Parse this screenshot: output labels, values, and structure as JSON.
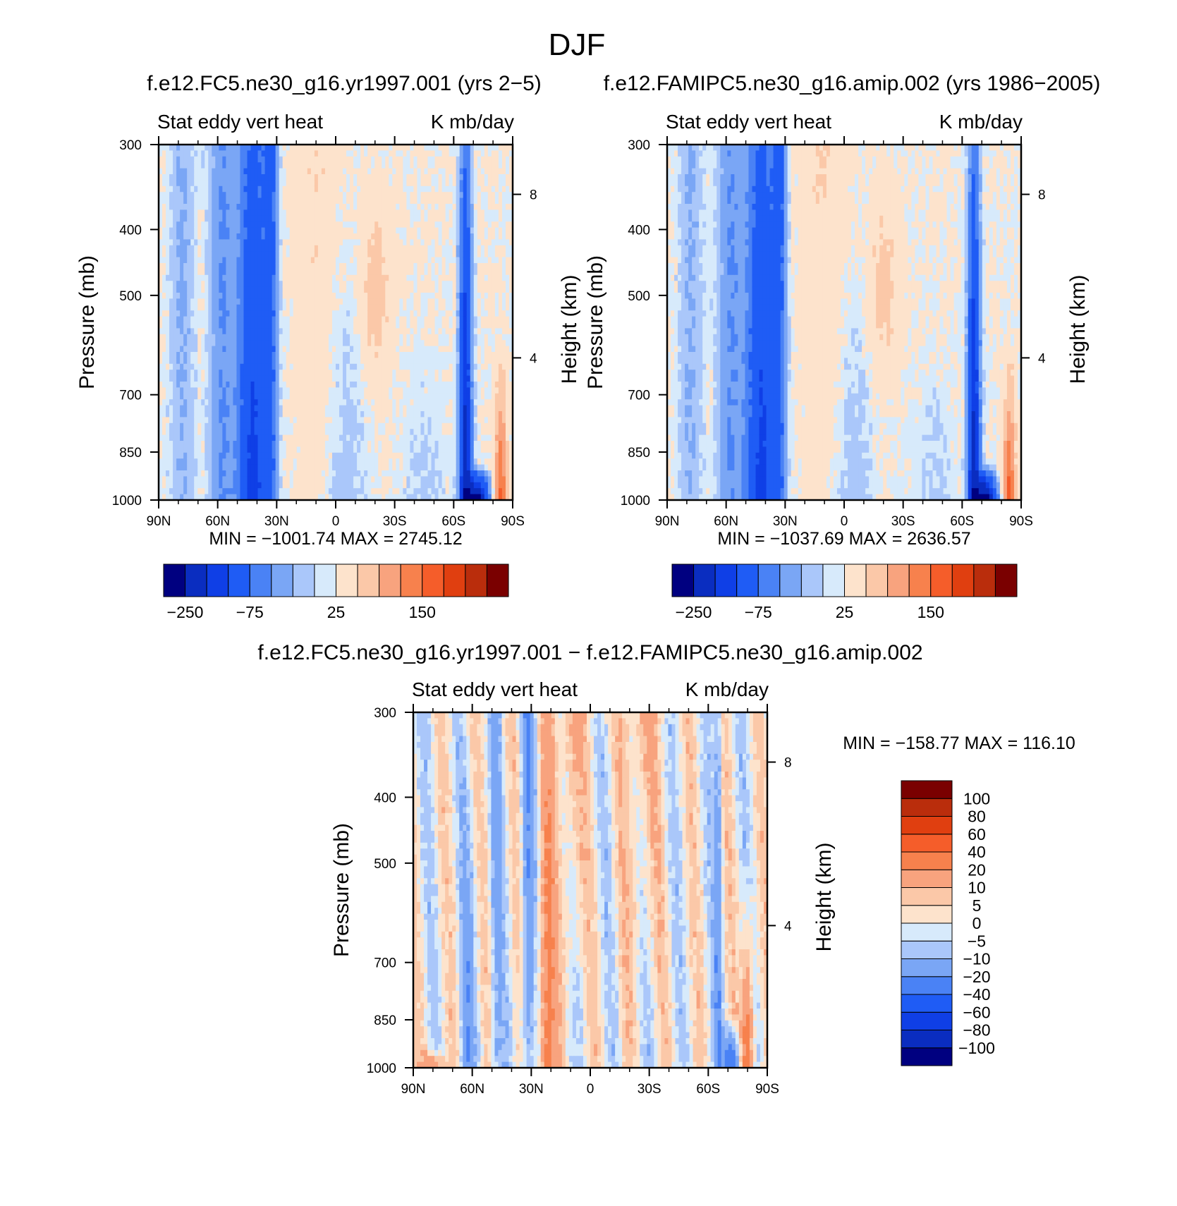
{
  "figure": {
    "title": "DJF"
  },
  "panels": [
    {
      "title": "f.e12.FC5.ne30_g16.yr1997.001 (yrs 2−5)",
      "subtitle_left": "Stat eddy vert heat",
      "subtitle_right": "K mb/day",
      "ylabel": "Pressure (mb)",
      "ylabel_right": "Height (km)",
      "minmax": "MIN = −1001.74   MAX = 2745.12",
      "colorbar": {
        "orientation": "horizontal",
        "colors": [
          "#000080",
          "#0a2dc0",
          "#0f3fe6",
          "#1f5cf5",
          "#4a82f5",
          "#7aa6f5",
          "#aac7fa",
          "#d7eafb",
          "#fde3cc",
          "#fbc8a8",
          "#f8a37e",
          "#f7814d",
          "#f55d2a",
          "#e03f10",
          "#ba2d0c",
          "#7a0000"
        ],
        "tick_labels": [
          "−250",
          "−75",
          "25",
          "150"
        ],
        "tick_boxes": [
          1,
          4,
          8,
          12
        ]
      },
      "variant": 0
    },
    {
      "title": "f.e12.FAMIPC5.ne30_g16.amip.002 (yrs 1986−2005)",
      "subtitle_left": "Stat eddy vert heat",
      "subtitle_right": "K mb/day",
      "ylabel": "Pressure (mb)",
      "ylabel_right": "Height (km)",
      "minmax": "MIN = −1037.69   MAX = 2636.57",
      "colorbar": {
        "orientation": "horizontal",
        "colors": [
          "#000080",
          "#0a2dc0",
          "#0f3fe6",
          "#1f5cf5",
          "#4a82f5",
          "#7aa6f5",
          "#aac7fa",
          "#d7eafb",
          "#fde3cc",
          "#fbc8a8",
          "#f8a37e",
          "#f7814d",
          "#f55d2a",
          "#e03f10",
          "#ba2d0c",
          "#7a0000"
        ],
        "tick_labels": [
          "−250",
          "−75",
          "25",
          "150"
        ],
        "tick_boxes": [
          1,
          4,
          8,
          12
        ]
      },
      "variant": 1
    },
    {
      "title": "f.e12.FC5.ne30_g16.yr1997.001 − f.e12.FAMIPC5.ne30_g16.amip.002",
      "subtitle_left": "Stat eddy vert heat",
      "subtitle_right": "K mb/day",
      "ylabel": "Pressure (mb)",
      "ylabel_right": "Height (km)",
      "minmax": "MIN = −158.77   MAX = 116.10",
      "colorbar": {
        "orientation": "vertical",
        "colors": [
          "#000080",
          "#0a2dc0",
          "#0f3fe6",
          "#1f5cf5",
          "#4a82f5",
          "#7aa6f5",
          "#aac7fa",
          "#d7eafb",
          "#fde3cc",
          "#fbc8a8",
          "#f8a37e",
          "#f7814d",
          "#f55d2a",
          "#e03f10",
          "#ba2d0c",
          "#7a0000"
        ],
        "levels": [
          "−100",
          "−80",
          "−60",
          "−40",
          "−20",
          "−10",
          "−5",
          "0",
          "5",
          "10",
          "20",
          "40",
          "60",
          "80",
          "100"
        ]
      },
      "variant": 2
    }
  ],
  "chart_data": [
    {
      "type": "heatmap",
      "title": "f.e12.FC5.ne30_g16.yr1997.001 (yrs 2−5)",
      "subtitle": "Stat eddy vert heat  K mb/day",
      "xlabel": "",
      "ylabel": "Pressure (mb)",
      "ylabel_right": "Height (km)",
      "x_ticks": [
        "90N",
        "60N",
        "30N",
        "0",
        "30S",
        "60S",
        "90S"
      ],
      "x_range": [
        90,
        -90
      ],
      "y_ticks": [
        300,
        400,
        500,
        700,
        850,
        1000
      ],
      "y_range": [
        1000,
        300
      ],
      "y_scale": "log",
      "y_right_ticks": [
        8,
        4
      ],
      "min": -1001.74,
      "max": 2745.12,
      "colorbar_labels": [
        "−250",
        "−75",
        "25",
        "150"
      ]
    },
    {
      "type": "heatmap",
      "title": "f.e12.FAMIPC5.ne30_g16.amip.002 (yrs 1986−2005)",
      "subtitle": "Stat eddy vert heat  K mb/day",
      "xlabel": "",
      "ylabel": "Pressure (mb)",
      "ylabel_right": "Height (km)",
      "x_ticks": [
        "90N",
        "60N",
        "30N",
        "0",
        "30S",
        "60S",
        "90S"
      ],
      "x_range": [
        90,
        -90
      ],
      "y_ticks": [
        300,
        400,
        500,
        700,
        850,
        1000
      ],
      "y_range": [
        1000,
        300
      ],
      "y_scale": "log",
      "y_right_ticks": [
        8,
        4
      ],
      "min": -1037.69,
      "max": 2636.57,
      "colorbar_labels": [
        "−250",
        "−75",
        "25",
        "150"
      ]
    },
    {
      "type": "heatmap",
      "title": "f.e12.FC5.ne30_g16.yr1997.001 − f.e12.FAMIPC5.ne30_g16.amip.002",
      "subtitle": "Stat eddy vert heat  K mb/day",
      "xlabel": "",
      "ylabel": "Pressure (mb)",
      "ylabel_right": "Height (km)",
      "x_ticks": [
        "90N",
        "60N",
        "30N",
        "0",
        "30S",
        "60S",
        "90S"
      ],
      "x_range": [
        90,
        -90
      ],
      "y_ticks": [
        300,
        400,
        500,
        700,
        850,
        1000
      ],
      "y_range": [
        1000,
        300
      ],
      "y_scale": "log",
      "y_right_ticks": [
        8,
        4
      ],
      "min": -158.77,
      "max": 116.1,
      "colorbar_labels": [
        "−100",
        "−80",
        "−60",
        "−40",
        "−20",
        "−10",
        "−5",
        "0",
        "5",
        "10",
        "20",
        "40",
        "60",
        "80",
        "100"
      ]
    }
  ]
}
